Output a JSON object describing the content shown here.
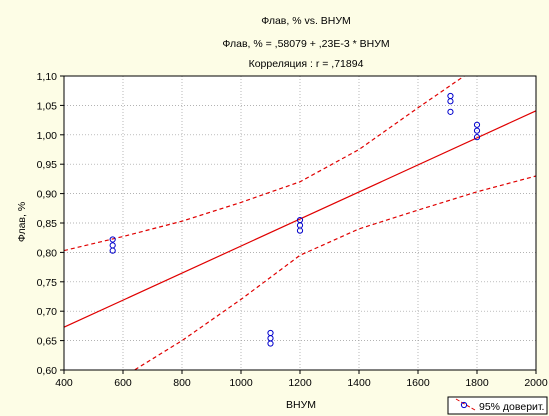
{
  "chart_data": {
    "type": "scatter",
    "title_lines": [
      "Флав, % vs. ВНУМ",
      "Флав, % = ,58079 + ,23E-3 * ВНУМ",
      "Корреляция : r = ,71894"
    ],
    "xlabel": "ВНУМ",
    "ylabel": "Флав, %",
    "xlim": [
      400,
      2000
    ],
    "ylim": [
      0.6,
      1.1
    ],
    "x_ticks": [
      400,
      600,
      800,
      1000,
      1200,
      1400,
      1600,
      1800,
      2000
    ],
    "x_tick_labels": [
      "400",
      "600",
      "800",
      "1000",
      "1200",
      "1400",
      "1600",
      "1800",
      "2000"
    ],
    "y_ticks": [
      0.6,
      0.65,
      0.7,
      0.75,
      0.8,
      0.85,
      0.9,
      0.95,
      1.0,
      1.05,
      1.1
    ],
    "y_tick_labels": [
      "0,60",
      "0,65",
      "0,70",
      "0,75",
      "0,80",
      "0,85",
      "0,90",
      "0,95",
      "1,00",
      "1,05",
      "1,10"
    ],
    "grid": true,
    "points": [
      {
        "x": 565,
        "y": 0.822
      },
      {
        "x": 565,
        "y": 0.812
      },
      {
        "x": 565,
        "y": 0.803
      },
      {
        "x": 1100,
        "y": 0.663
      },
      {
        "x": 1100,
        "y": 0.654
      },
      {
        "x": 1100,
        "y": 0.645
      },
      {
        "x": 1200,
        "y": 0.855
      },
      {
        "x": 1200,
        "y": 0.846
      },
      {
        "x": 1200,
        "y": 0.837
      },
      {
        "x": 1710,
        "y": 1.066
      },
      {
        "x": 1710,
        "y": 1.057
      },
      {
        "x": 1710,
        "y": 1.039
      },
      {
        "x": 1800,
        "y": 1.017
      },
      {
        "x": 1800,
        "y": 1.007
      },
      {
        "x": 1800,
        "y": 0.996
      }
    ],
    "regression": {
      "intercept": 0.58079,
      "slope": 0.00023
    },
    "confidence_upper": [
      {
        "x": 400,
        "y": 0.803
      },
      {
        "x": 600,
        "y": 0.827
      },
      {
        "x": 800,
        "y": 0.853
      },
      {
        "x": 1000,
        "y": 0.885
      },
      {
        "x": 1200,
        "y": 0.92
      },
      {
        "x": 1400,
        "y": 0.975
      },
      {
        "x": 1600,
        "y": 1.046
      },
      {
        "x": 1800,
        "y": 1.115
      }
    ],
    "confidence_lower": [
      {
        "x": 600,
        "y": 0.588
      },
      {
        "x": 800,
        "y": 0.65
      },
      {
        "x": 1000,
        "y": 0.72
      },
      {
        "x": 1200,
        "y": 0.795
      },
      {
        "x": 1400,
        "y": 0.84
      },
      {
        "x": 1600,
        "y": 0.872
      },
      {
        "x": 1800,
        "y": 0.903
      },
      {
        "x": 2000,
        "y": 0.93
      }
    ],
    "legend": {
      "label": "95% доверит.",
      "position": "bottom-right"
    },
    "colors": {
      "background": "#fdfde6",
      "plot_area": "#ffffff",
      "points": "#0000cc",
      "fit_line": "#e00000",
      "grid": "#9a9a9a"
    }
  }
}
